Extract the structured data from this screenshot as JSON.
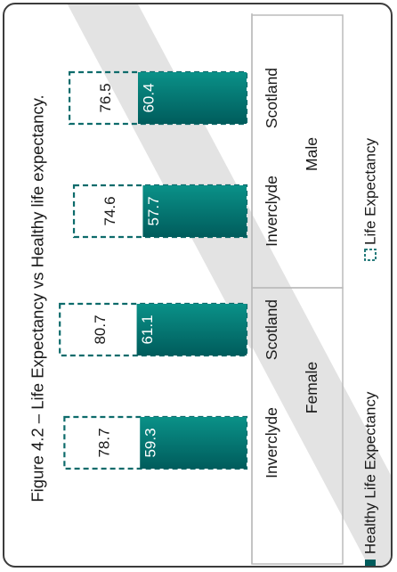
{
  "chart_data": {
    "type": "bar",
    "title": "Figure 4.2 – Life Expectancy vs Healthy life expectancy.",
    "groups": [
      {
        "label": "Female",
        "categories": [
          "Inverclyde",
          "Scotland"
        ]
      },
      {
        "label": "Male",
        "categories": [
          "Inverclyde",
          "Scotland"
        ]
      }
    ],
    "categories": [
      "Inverclyde",
      "Scotland",
      "Inverclyde",
      "Scotland"
    ],
    "series": [
      {
        "name": "Healthy Life Expectancy",
        "values": [
          59.3,
          61.1,
          57.7,
          60.4
        ],
        "style": "solid"
      },
      {
        "name": "Life Expectancy",
        "values": [
          78.7,
          80.7,
          74.6,
          76.5
        ],
        "style": "dashed-outline"
      }
    ],
    "legend_position": "bottom",
    "orientation": "rotated 90° counter-clockwise (bars grow upward in the image)",
    "colors": {
      "healthy_bar_dark": "#005c5c",
      "healthy_bar_light": "#0a9188",
      "life_outline": "#0d6b6b",
      "frame": "#3c3c3c",
      "axis_box": "#bbbbbb",
      "text": "#1a1a1a",
      "label_on_bar": "#ffffff"
    }
  }
}
